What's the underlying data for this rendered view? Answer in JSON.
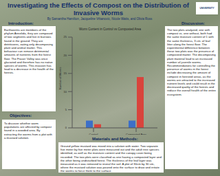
{
  "poster": {
    "title": "Investigating the Effects of Compost on the Distribution of Invasive Worms",
    "authors": "By Samantha Hamilton, Jacqueline Vrbanovic, Nicole Watts, and Olivia Ross",
    "logo": "UNIVERSITY",
    "sections": [
      {
        "heading": "Introduction:",
        "text": "Earthworms are members of the phylum Annelida, they are composed of two segments and live in burrows found in the ground. They are detritivores, eating only decomposing plant and animal matter. This behaviour can remove detrimental amounts of nutrients from the forest floor. The Fraser Valley was once glaciated and therefore has no native species of worms. This invasion has lead to a decrease in the health of the forests."
      },
      {
        "heading": "Objectives:",
        "text": "To discover whether worm populations are affected by compost found in a wooded area. By extracting the worms from a plot with a mustard solution."
      },
      {
        "heading": "Materials and Methods:",
        "text": "Ground yellow mustard was mixed into a solution with water. Two separate five meter by five meter plots were measured out and the adult tree species identified, as well as the moisture content and the canopy cover being recorded. The two plots were classified as one having a composted layer and the other being undisturbed forest. The thickness of the leaf layer was measured as it was removed to reveal the soil. A plot of 30cm by 30 cm, where the mustard solution was poured onto the surface to draw and irritate the worms to force them to the surface."
      },
      {
        "heading": "Discussion:",
        "text": "The two plots analyzed, one with compost vs. one without, both had the same moisture content of 1 with the same thickness, 3 cm. of leaf litter along the forest floor. The experimental difference between these two plots was the presence of composted matter. The decomposing plant material lead to an increased number of juvenile worms. Recommendations for controlling the presence of worms in the forest include decreasing the amount of compost in forested areas, as the worms are attracted to the increased nutrient levels and could result in the decreased quality of the forests and reduce the overall health of the entire ecosystem."
      }
    ]
  },
  "chart_data": {
    "type": "bar",
    "title": "Worm Content in Control vs Composted Area",
    "y_label": "Number of Worms",
    "categories": [
      "Control",
      "Composted Area"
    ],
    "series": [
      {
        "color": "#3c6fc8",
        "values": [
          2,
          2
        ]
      },
      {
        "color": "#d9443c",
        "values": [
          1,
          14
        ]
      }
    ],
    "ylim": [
      0,
      25
    ],
    "yticks": [
      0,
      5,
      10,
      15,
      20,
      25
    ],
    "grid": false
  }
}
